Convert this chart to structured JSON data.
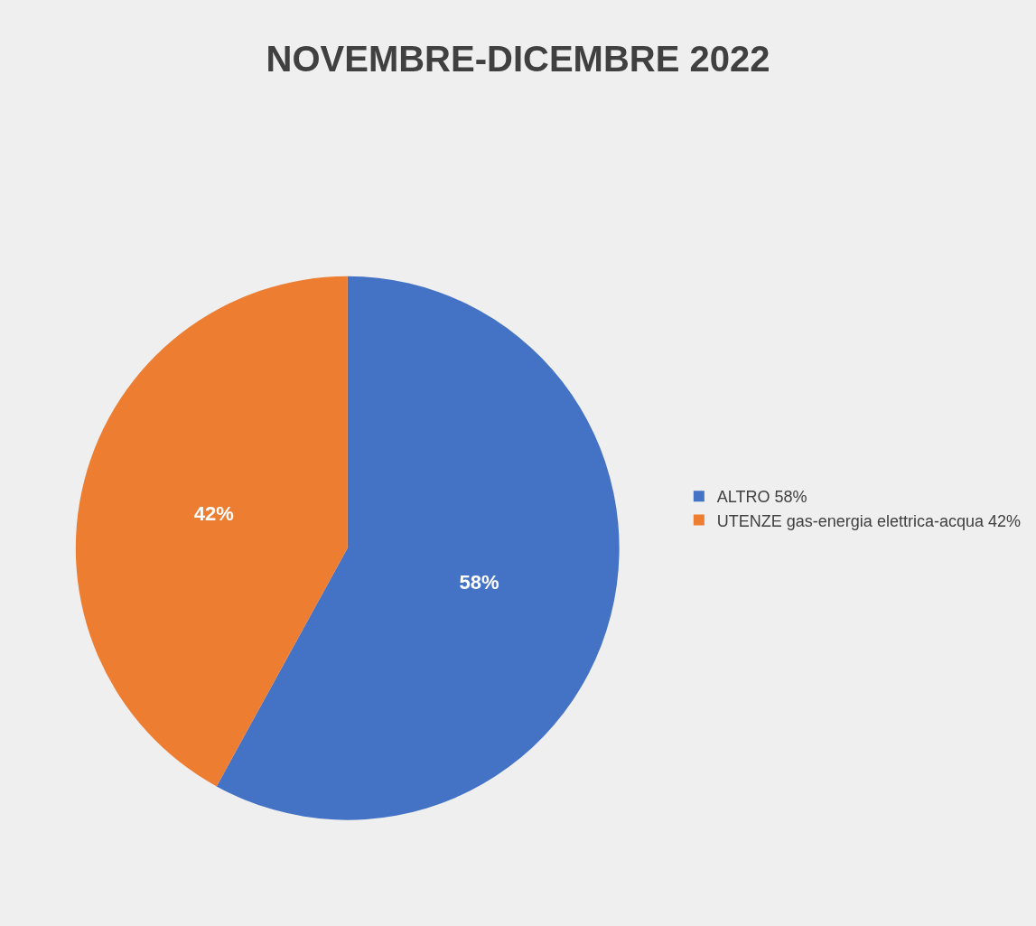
{
  "chart_data": {
    "type": "pie",
    "title": "NOVEMBRE-DICEMBRE 2022",
    "categories": [
      "ALTRO 58%",
      "UTENZE gas-energia elettrica-acqua 42%"
    ],
    "values": [
      58,
      42
    ],
    "colors": [
      "#4472c4",
      "#ed7d31"
    ],
    "value_labels": [
      "58%",
      "42%"
    ],
    "legend": "right"
  }
}
